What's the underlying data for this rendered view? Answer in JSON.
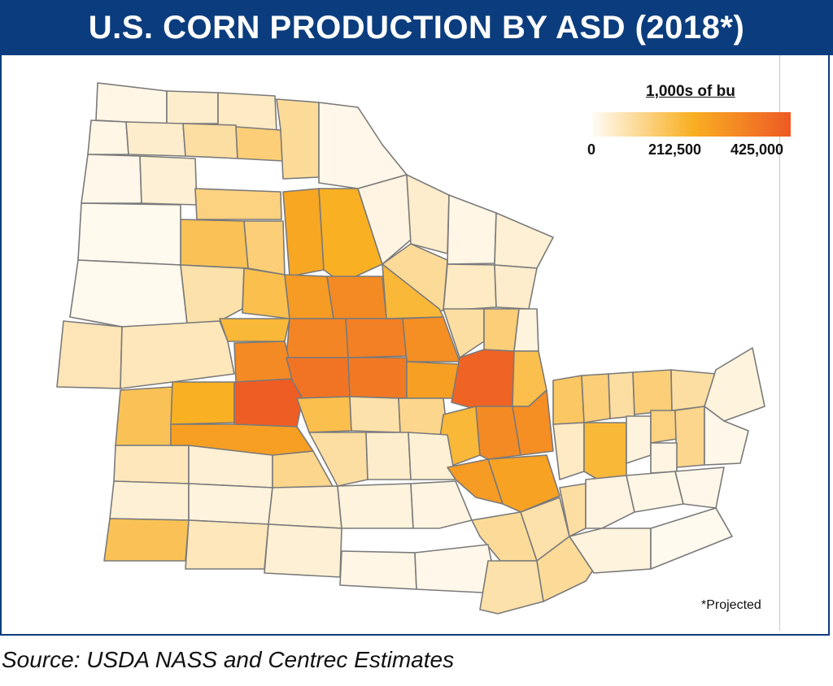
{
  "title": "U.S. CORN PRODUCTION BY ASD (2018*)",
  "legend": {
    "title": "1,000s of bu",
    "min_label": "0",
    "mid_label": "212,500",
    "max_label": "425,000",
    "min_value": 0,
    "max_value": 425000
  },
  "footnote": "*Projected",
  "source": "Source: USDA NASS and Centrec Estimates",
  "colors": {
    "title_background": "#0b3d7e",
    "scale_low": "#fffcf6",
    "scale_mid": "#f9b023",
    "scale_high": "#ee5a24",
    "boundary": "#7a7a7a"
  }
}
